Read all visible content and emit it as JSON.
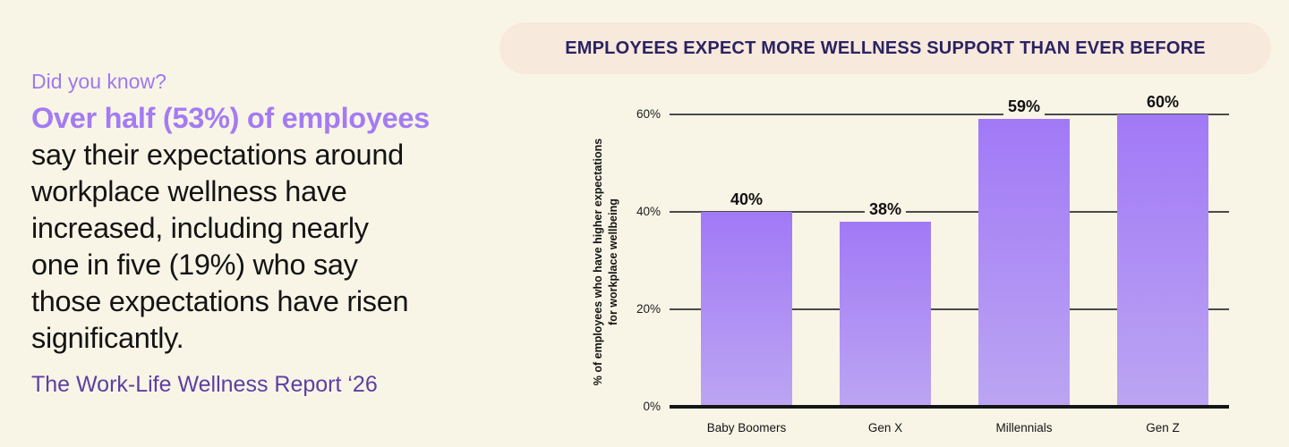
{
  "page": {
    "background_color": "#f8f5e7"
  },
  "left_panel": {
    "kicker": "Did you know?",
    "headline": "Over half (53%) of employees",
    "body_lines": [
      "say their expectations around",
      "workplace wellness have",
      "increased, including nearly",
      "one in five (19%) who say",
      "those expectations have risen",
      "significantly."
    ],
    "source": "The Work-Life Wellness Report ‘26",
    "colors": {
      "kicker": "#9e79ee",
      "headline": "#a47bf2",
      "body": "#141414",
      "source": "#5d3fa3"
    }
  },
  "banner": {
    "title": "EMPLOYEES EXPECT MORE WELLNESS SUPPORT THAN EVER BEFORE",
    "background": "#f7e9db",
    "text_color": "#2b2263"
  },
  "chart_data": {
    "type": "bar",
    "title": "EMPLOYEES EXPECT MORE WELLNESS SUPPORT THAN EVER BEFORE",
    "categories": [
      "Baby Boomers",
      "Gen X",
      "Millennials",
      "Gen Z"
    ],
    "values": [
      40,
      38,
      59,
      60
    ],
    "data_labels": [
      "40%",
      "38%",
      "59%",
      "60%"
    ],
    "xlabel": "",
    "ylabel": "% of employees who have higher expectations for workplace wellbeing",
    "ylabel_lines": [
      "% of employees who have higher expectations",
      "for workplace wellbeing"
    ],
    "yticks": [
      "0%",
      "20%",
      "40%",
      "60%"
    ],
    "ylim": [
      0,
      60
    ],
    "grid": true,
    "legend": "none",
    "bar_color_top": "#a179f6",
    "bar_color_bottom": "#bca5f2",
    "gridline_color": "#4a4a4a",
    "baseline_color": "#151515"
  }
}
